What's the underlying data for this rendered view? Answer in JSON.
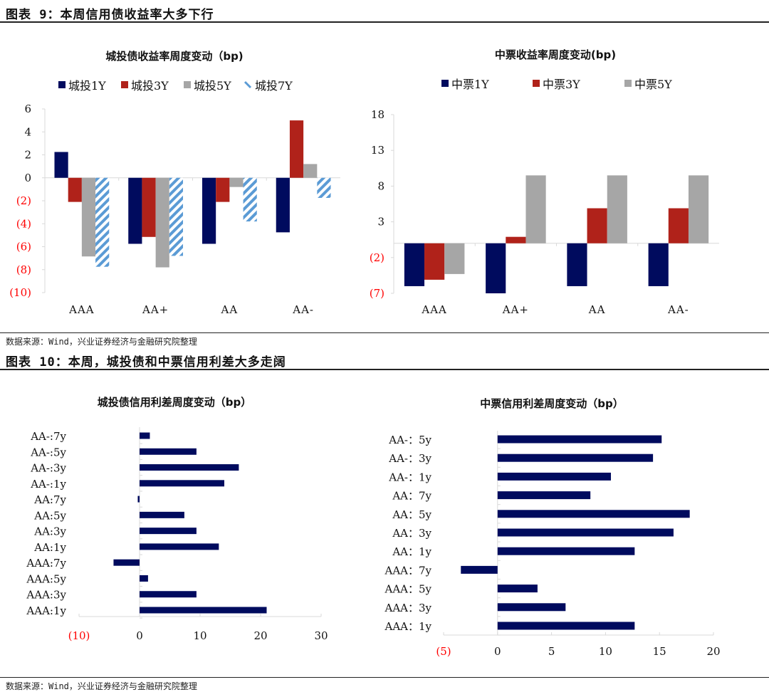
{
  "figure9": {
    "title": "图表 9：本周信用债收益率大多下行",
    "source": "数据来源：Wind，兴业证券经济与金融研究院整理"
  },
  "figure10": {
    "title": "图表 10：本周，城投债和中票信用利差大多走阔",
    "source": "数据来源：Wind，兴业证券经济与金融研究院整理"
  },
  "colors": {
    "navy": "#000b5e",
    "red": "#b0221a",
    "gray": "#a6a6a6",
    "lightblue": "#5b9bd5",
    "negative_tick": "#ff0000"
  },
  "chart_data": [
    {
      "type": "bar",
      "title": "城投债收益率周度变动（bp)",
      "categories": [
        "AAA",
        "AA+",
        "AA",
        "AA-"
      ],
      "series": [
        {
          "name": "城投1Y",
          "values": [
            2.25,
            -5.75,
            -5.75,
            -4.75
          ],
          "color": "#000b5e",
          "pattern": "solid"
        },
        {
          "name": "城投3Y",
          "values": [
            -2.1,
            -5.15,
            -2.1,
            5.0
          ],
          "color": "#b0221a",
          "pattern": "solid"
        },
        {
          "name": "城投5Y",
          "values": [
            -6.85,
            -7.8,
            -0.8,
            1.2
          ],
          "color": "#a6a6a6",
          "pattern": "solid"
        },
        {
          "name": "城投7Y",
          "values": [
            -7.75,
            -6.8,
            -3.8,
            -1.75
          ],
          "color": "#5b9bd5",
          "pattern": "diagonal-stripes"
        }
      ],
      "ylim": [
        -10,
        6
      ],
      "yticks": [
        "6",
        "4",
        "2",
        "0",
        "(2)",
        "(4)",
        "(6)",
        "(8)",
        "(10)"
      ],
      "ytick_values": [
        6,
        4,
        2,
        0,
        -2,
        -4,
        -6,
        -8,
        -10
      ],
      "legend": "top",
      "grid": false
    },
    {
      "type": "bar",
      "title": "中票收益率周度变动(bp)",
      "categories": [
        "AAA",
        "AA+",
        "AA",
        "AA-"
      ],
      "series": [
        {
          "name": "中票1Y",
          "values": [
            -6.0,
            -7.0,
            -6.0,
            -6.0
          ],
          "color": "#000b5e"
        },
        {
          "name": "中票3Y",
          "values": [
            -5.1,
            0.9,
            4.9,
            4.9
          ],
          "color": "#b0221a"
        },
        {
          "name": "中票5Y",
          "values": [
            -4.3,
            9.5,
            9.5,
            9.5
          ],
          "color": "#a6a6a6"
        }
      ],
      "ylim": [
        -7,
        18
      ],
      "yticks": [
        "18",
        "13",
        "8",
        "3",
        "(2)",
        "(7)"
      ],
      "ytick_values": [
        18,
        13,
        8,
        3,
        -2,
        -7
      ],
      "legend": "top",
      "grid": false
    },
    {
      "type": "bar",
      "orientation": "horizontal",
      "title": "城投债信用利差周度变动（bp）",
      "categories": [
        "AA-:7y",
        "AA-:5y",
        "AA-:3y",
        "AA-:1y",
        "AA:7y",
        "AA:5y",
        "AA:3y",
        "AA:1y",
        "AAA:7y",
        "AAA:5y",
        "AAA:3y",
        "AAA:1y"
      ],
      "values": [
        1.7,
        9.4,
        16.4,
        14.0,
        -0.3,
        7.4,
        9.4,
        13.1,
        -4.3,
        1.4,
        9.4,
        21.0
      ],
      "color": "#000b5e",
      "xlim": [
        -10,
        30
      ],
      "xticks": [
        "(10)",
        "0",
        "10",
        "20",
        "30"
      ],
      "xtick_values": [
        -10,
        0,
        10,
        20,
        30
      ],
      "grid": false
    },
    {
      "type": "bar",
      "orientation": "horizontal",
      "title": "中票信用利差周度变动（bp）",
      "categories": [
        "AA-：5y",
        "AA-：3y",
        "AA-：1y",
        "AA：7y",
        "AA：5y",
        "AA：3y",
        "AA：1y",
        "AAA：7y",
        "AAA：5y",
        "AAA：3y",
        "AAA：1y"
      ],
      "values": [
        15.2,
        14.4,
        10.5,
        8.6,
        17.8,
        16.3,
        12.7,
        -3.4,
        3.7,
        6.3,
        12.7
      ],
      "color": "#000b5e",
      "xlim": [
        -5,
        20
      ],
      "xticks": [
        "(5)",
        "0",
        "5",
        "10",
        "15",
        "20"
      ],
      "xtick_values": [
        -5,
        0,
        5,
        10,
        15,
        20
      ],
      "grid": false
    }
  ]
}
